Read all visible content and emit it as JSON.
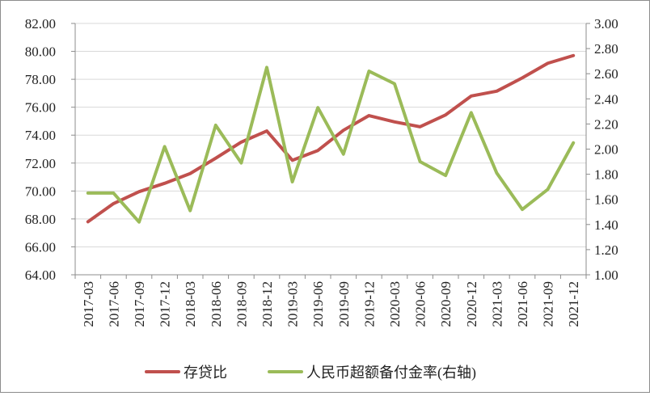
{
  "chart_data": {
    "type": "line",
    "title": "",
    "xlabel": "",
    "ylabel": "",
    "grid": true,
    "legend_position": "bottom",
    "x": [
      "2017-03",
      "2017-06",
      "2017-09",
      "2017-12",
      "2018-03",
      "2018-06",
      "2018-09",
      "2018-12",
      "2019-03",
      "2019-06",
      "2019-09",
      "2019-12",
      "2020-03",
      "2020-06",
      "2020-09",
      "2020-12",
      "2021-03",
      "2021-06",
      "2021-09",
      "2021-12"
    ],
    "y_left": {
      "lim": [
        64,
        82
      ],
      "ticks": [
        "64.00",
        "66.00",
        "68.00",
        "70.00",
        "72.00",
        "74.00",
        "76.00",
        "78.00",
        "80.00",
        "82.00"
      ]
    },
    "y_right": {
      "lim": [
        1.0,
        3.0
      ],
      "ticks": [
        "1.00",
        "1.20",
        "1.40",
        "1.60",
        "1.80",
        "2.00",
        "2.20",
        "2.40",
        "2.60",
        "2.80",
        "3.00"
      ]
    },
    "series": [
      {
        "name": "存贷比",
        "axis": "left",
        "color": "#c0504d",
        "values": [
          67.8,
          69.1,
          69.95,
          70.55,
          71.25,
          72.35,
          73.5,
          74.3,
          72.2,
          72.9,
          74.35,
          75.4,
          74.95,
          74.6,
          75.45,
          76.8,
          77.15,
          78.1,
          79.15,
          79.7
        ]
      },
      {
        "name": "人民币超额备付金率(右轴)",
        "axis": "right",
        "color": "#9bbb59",
        "values": [
          1.65,
          1.65,
          1.42,
          2.02,
          1.51,
          2.19,
          1.89,
          2.65,
          1.74,
          2.33,
          1.96,
          2.62,
          2.52,
          1.9,
          1.79,
          2.29,
          1.81,
          1.52,
          1.68,
          2.05
        ]
      }
    ]
  }
}
